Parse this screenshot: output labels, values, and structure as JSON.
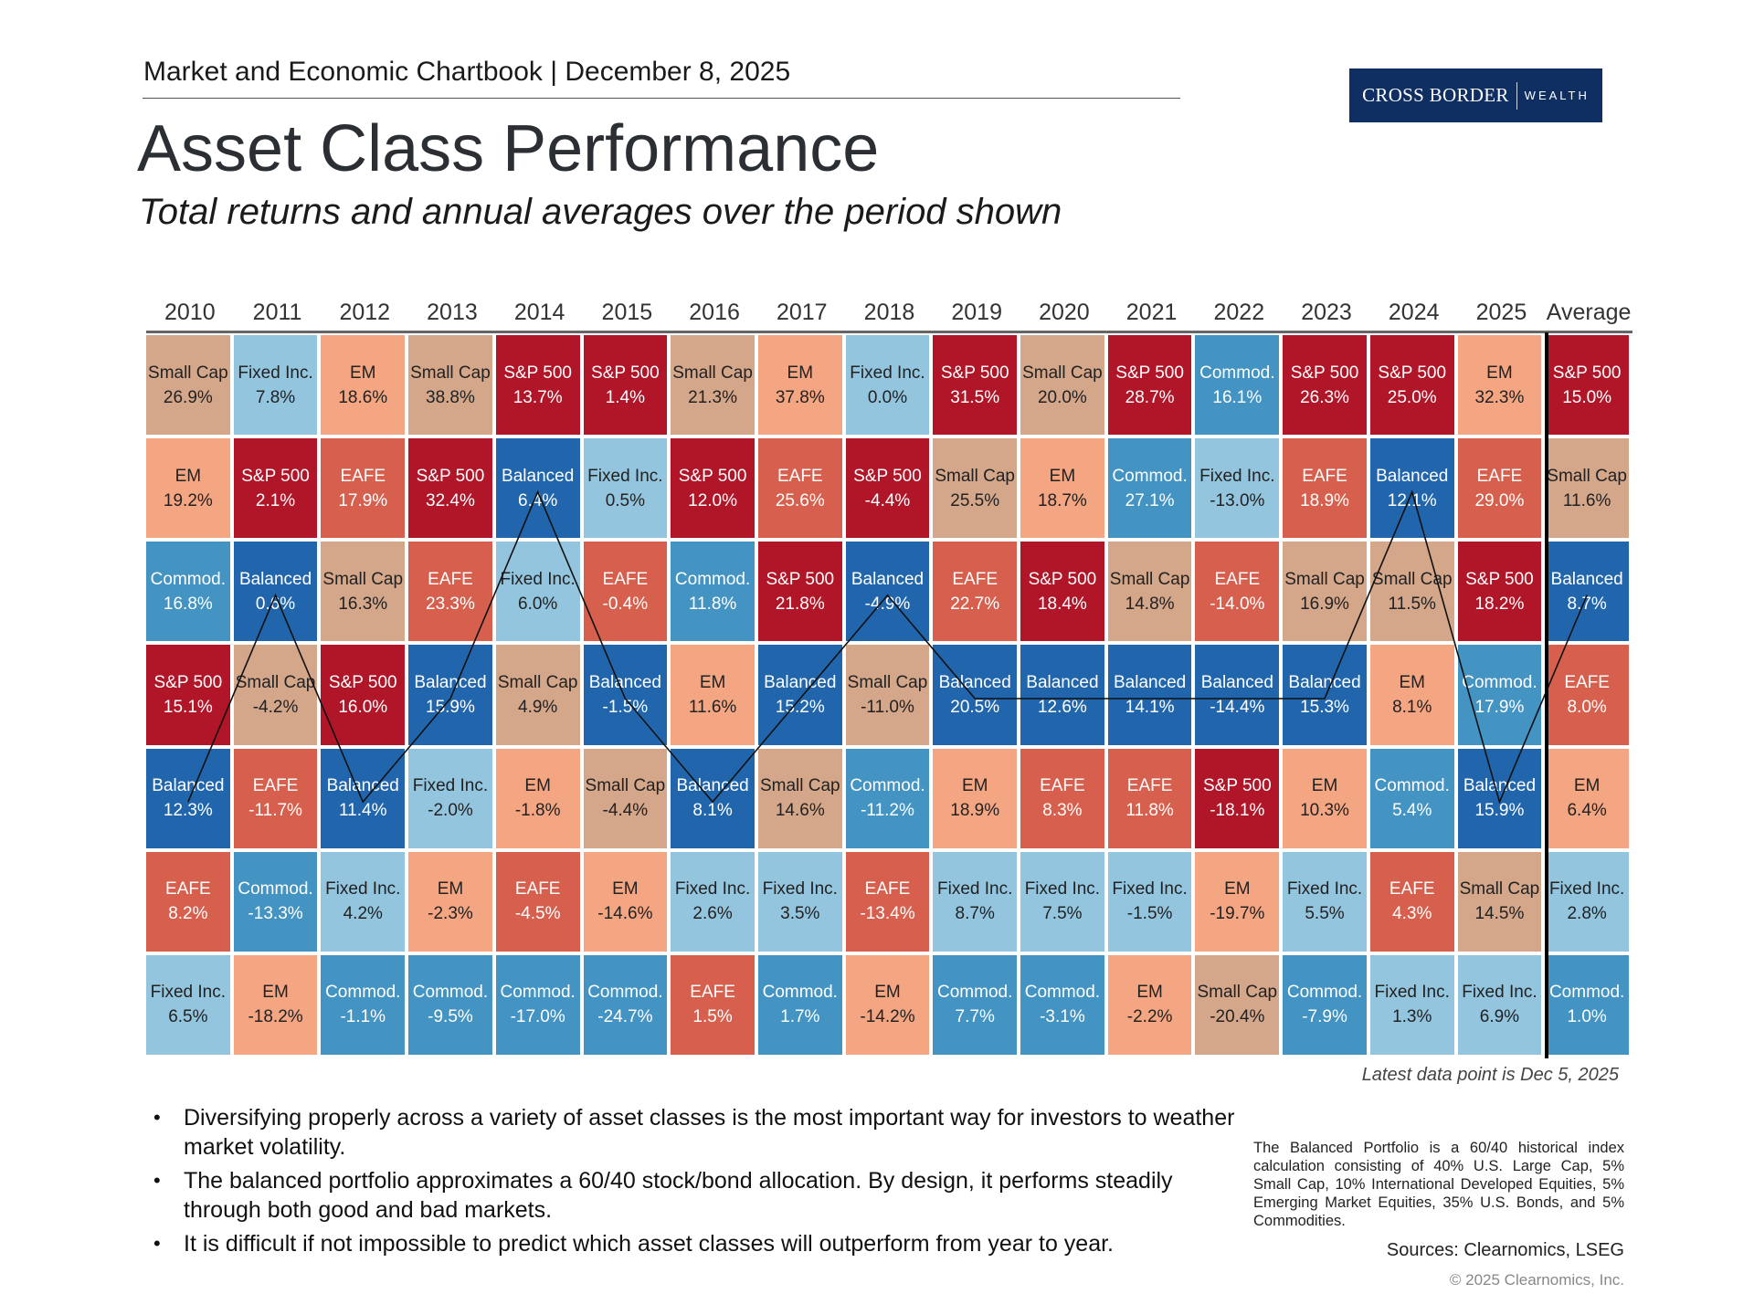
{
  "header": {
    "kicker": "Market and Economic Chartbook | December 8, 2025",
    "title": "Asset Class Performance",
    "subtitle": "Total returns and annual averages over the period shown",
    "logo": {
      "primary": "CROSS BORDER",
      "secondary": "WEALTH",
      "color": "#0f2f62"
    }
  },
  "chart_data": {
    "type": "heatmap",
    "title": "Asset Class Performance",
    "subtitle": "Total returns and annual averages over the period shown",
    "unit": "%",
    "highlight_series": "Balanced",
    "colors": {
      "S&P 500": "#b01528",
      "Small Cap": "#d4a68a",
      "Fixed Inc.": "#93c5df",
      "EM": "#f4a582",
      "EAFE": "#d6604d",
      "Balanced": "#2166ac",
      "Commod.": "#4393c3"
    },
    "text_colors": {
      "S&P 500": "#ffffff",
      "Small Cap": "#222222",
      "Fixed Inc.": "#222222",
      "EM": "#222222",
      "EAFE": "#ffffff",
      "Balanced": "#ffffff",
      "Commod.": "#ffffff"
    },
    "columns": [
      {
        "label": "2010",
        "cells": [
          [
            "Small Cap",
            26.9
          ],
          [
            "EM",
            19.2
          ],
          [
            "Commod.",
            16.8
          ],
          [
            "S&P 500",
            15.1
          ],
          [
            "Balanced",
            12.3
          ],
          [
            "EAFE",
            8.2
          ],
          [
            "Fixed Inc.",
            6.5
          ]
        ]
      },
      {
        "label": "2011",
        "cells": [
          [
            "Fixed Inc.",
            7.8
          ],
          [
            "S&P 500",
            2.1
          ],
          [
            "Balanced",
            0.6
          ],
          [
            "Small Cap",
            -4.2
          ],
          [
            "EAFE",
            -11.7
          ],
          [
            "Commod.",
            -13.3
          ],
          [
            "EM",
            -18.2
          ]
        ]
      },
      {
        "label": "2012",
        "cells": [
          [
            "EM",
            18.6
          ],
          [
            "EAFE",
            17.9
          ],
          [
            "Small Cap",
            16.3
          ],
          [
            "S&P 500",
            16.0
          ],
          [
            "Balanced",
            11.4
          ],
          [
            "Fixed Inc.",
            4.2
          ],
          [
            "Commod.",
            -1.1
          ]
        ]
      },
      {
        "label": "2013",
        "cells": [
          [
            "Small Cap",
            38.8
          ],
          [
            "S&P 500",
            32.4
          ],
          [
            "EAFE",
            23.3
          ],
          [
            "Balanced",
            15.9
          ],
          [
            "Fixed Inc.",
            -2.0
          ],
          [
            "EM",
            -2.3
          ],
          [
            "Commod.",
            -9.5
          ]
        ]
      },
      {
        "label": "2014",
        "cells": [
          [
            "S&P 500",
            13.7
          ],
          [
            "Balanced",
            6.4
          ],
          [
            "Fixed Inc.",
            6.0
          ],
          [
            "Small Cap",
            4.9
          ],
          [
            "EM",
            -1.8
          ],
          [
            "EAFE",
            -4.5
          ],
          [
            "Commod.",
            -17.0
          ]
        ]
      },
      {
        "label": "2015",
        "cells": [
          [
            "S&P 500",
            1.4
          ],
          [
            "Fixed Inc.",
            0.5
          ],
          [
            "EAFE",
            -0.4
          ],
          [
            "Balanced",
            -1.5
          ],
          [
            "Small Cap",
            -4.4
          ],
          [
            "EM",
            -14.6
          ],
          [
            "Commod.",
            -24.7
          ]
        ]
      },
      {
        "label": "2016",
        "cells": [
          [
            "Small Cap",
            21.3
          ],
          [
            "S&P 500",
            12.0
          ],
          [
            "Commod.",
            11.8
          ],
          [
            "EM",
            11.6
          ],
          [
            "Balanced",
            8.1
          ],
          [
            "Fixed Inc.",
            2.6
          ],
          [
            "EAFE",
            1.5
          ]
        ]
      },
      {
        "label": "2017",
        "cells": [
          [
            "EM",
            37.8
          ],
          [
            "EAFE",
            25.6
          ],
          [
            "S&P 500",
            21.8
          ],
          [
            "Balanced",
            15.2
          ],
          [
            "Small Cap",
            14.6
          ],
          [
            "Fixed Inc.",
            3.5
          ],
          [
            "Commod.",
            1.7
          ]
        ]
      },
      {
        "label": "2018",
        "cells": [
          [
            "Fixed Inc.",
            0.0
          ],
          [
            "S&P 500",
            -4.4
          ],
          [
            "Balanced",
            -4.9
          ],
          [
            "Small Cap",
            -11.0
          ],
          [
            "Commod.",
            -11.2
          ],
          [
            "EAFE",
            -13.4
          ],
          [
            "EM",
            -14.2
          ]
        ]
      },
      {
        "label": "2019",
        "cells": [
          [
            "S&P 500",
            31.5
          ],
          [
            "Small Cap",
            25.5
          ],
          [
            "EAFE",
            22.7
          ],
          [
            "Balanced",
            20.5
          ],
          [
            "EM",
            18.9
          ],
          [
            "Fixed Inc.",
            8.7
          ],
          [
            "Commod.",
            7.7
          ]
        ]
      },
      {
        "label": "2020",
        "cells": [
          [
            "Small Cap",
            20.0
          ],
          [
            "EM",
            18.7
          ],
          [
            "S&P 500",
            18.4
          ],
          [
            "Balanced",
            12.6
          ],
          [
            "EAFE",
            8.3
          ],
          [
            "Fixed Inc.",
            7.5
          ],
          [
            "Commod.",
            -3.1
          ]
        ]
      },
      {
        "label": "2021",
        "cells": [
          [
            "S&P 500",
            28.7
          ],
          [
            "Commod.",
            27.1
          ],
          [
            "Small Cap",
            14.8
          ],
          [
            "Balanced",
            14.1
          ],
          [
            "EAFE",
            11.8
          ],
          [
            "Fixed Inc.",
            -1.5
          ],
          [
            "EM",
            -2.2
          ]
        ]
      },
      {
        "label": "2022",
        "cells": [
          [
            "Commod.",
            16.1
          ],
          [
            "Fixed Inc.",
            -13.0
          ],
          [
            "EAFE",
            -14.0
          ],
          [
            "Balanced",
            -14.4
          ],
          [
            "S&P 500",
            -18.1
          ],
          [
            "EM",
            -19.7
          ],
          [
            "Small Cap",
            -20.4
          ]
        ]
      },
      {
        "label": "2023",
        "cells": [
          [
            "S&P 500",
            26.3
          ],
          [
            "EAFE",
            18.9
          ],
          [
            "Small Cap",
            16.9
          ],
          [
            "Balanced",
            15.3
          ],
          [
            "EM",
            10.3
          ],
          [
            "Fixed Inc.",
            5.5
          ],
          [
            "Commod.",
            -7.9
          ]
        ]
      },
      {
        "label": "2024",
        "cells": [
          [
            "S&P 500",
            25.0
          ],
          [
            "Balanced",
            12.1
          ],
          [
            "Small Cap",
            11.5
          ],
          [
            "EM",
            8.1
          ],
          [
            "Commod.",
            5.4
          ],
          [
            "EAFE",
            4.3
          ],
          [
            "Fixed Inc.",
            1.3
          ]
        ]
      },
      {
        "label": "2025",
        "cells": [
          [
            "EM",
            32.3
          ],
          [
            "EAFE",
            29.0
          ],
          [
            "S&P 500",
            18.2
          ],
          [
            "Commod.",
            17.9
          ],
          [
            "Balanced",
            15.9
          ],
          [
            "Small Cap",
            14.5
          ],
          [
            "Fixed Inc.",
            6.9
          ]
        ]
      },
      {
        "label": "Average",
        "cells": [
          [
            "S&P 500",
            15.0
          ],
          [
            "Small Cap",
            11.6
          ],
          [
            "Balanced",
            8.7
          ],
          [
            "EAFE",
            8.0
          ],
          [
            "EM",
            6.4
          ],
          [
            "Fixed Inc.",
            2.8
          ],
          [
            "Commod.",
            1.0
          ]
        ]
      }
    ],
    "annotation": "Latest data point is Dec 5, 2025"
  },
  "bullets": [
    "Diversifying properly across a variety of asset classes is the most important way for investors to weather market volatility.",
    "The balanced portfolio approximates a 60/40 stock/bond allocation. By design, it performs steadily through both good and bad markets.",
    "It is difficult if not impossible to predict which asset classes will outperform from year to year."
  ],
  "footnote": "The Balanced Portfolio is a 60/40 historical index calculation consisting of 40% U.S. Large Cap, 5% Small Cap, 10% International Developed Equities, 5% Emerging Market Equities, 35% U.S. Bonds, and 5% Commodities.",
  "sources": "Sources: Clearnomics, LSEG",
  "copyright": "© 2025 Clearnomics, Inc."
}
